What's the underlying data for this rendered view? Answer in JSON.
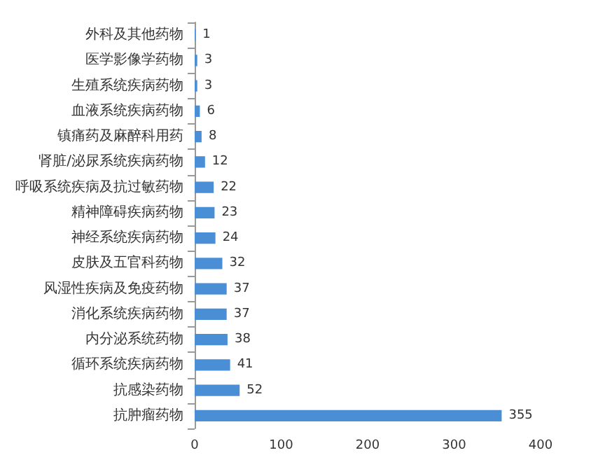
{
  "chart_data": {
    "type": "bar",
    "orientation": "horizontal",
    "categories": [
      "外科及其他药物",
      "医学影像学药物",
      "生殖系统疾病药物",
      "血液系统疾病药物",
      "镇痛药及麻醉科用药",
      "肾脏/泌尿系统疾病药物",
      "呼吸系统疾病及抗过敏药物",
      "精神障碍疾病药物",
      "神经系统疾病药物",
      "皮肤及五官科药物",
      "风湿性疾病及免疫药物",
      "消化系统疾病药物",
      "内分泌系统药物",
      "循环系统疾病药物",
      "抗感染药物",
      "抗肿瘤药物"
    ],
    "values": [
      1,
      3,
      3,
      6,
      8,
      12,
      22,
      23,
      24,
      32,
      37,
      37,
      38,
      41,
      52,
      355
    ],
    "color": "#4a8fd6",
    "data_labels": true,
    "xlim": [
      0,
      400
    ],
    "xticks": [
      0,
      100,
      200,
      300,
      400
    ],
    "grid": false
  }
}
